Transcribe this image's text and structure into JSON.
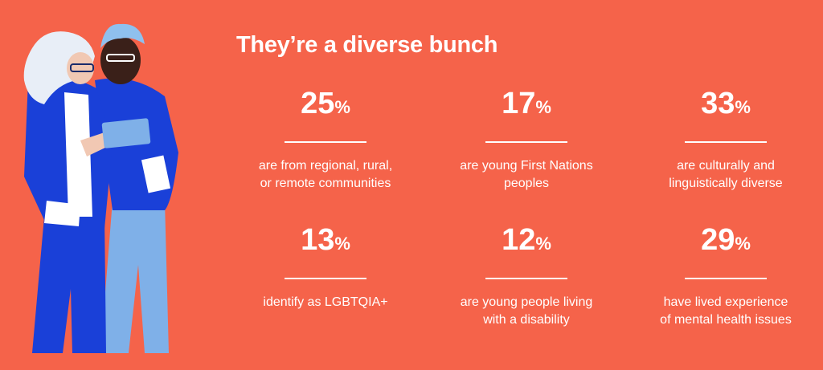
{
  "heading": "They’re a diverse bunch",
  "colors": {
    "background": "#f5634a",
    "text": "#ffffff",
    "illustration_blue": "#1a40d8",
    "illustration_light_blue": "#7fb0e8"
  },
  "stats": [
    {
      "value": "25",
      "unit": "%",
      "line1": "are from regional, rural,",
      "line2": "or remote communities"
    },
    {
      "value": "17",
      "unit": "%",
      "line1": "are young First Nations",
      "line2": "peoples"
    },
    {
      "value": "33",
      "unit": "%",
      "line1": "are culturally and",
      "line2": "linguistically diverse"
    },
    {
      "value": "13",
      "unit": "%",
      "line1": "identify as LGBTQIA+",
      "line2": ""
    },
    {
      "value": "12",
      "unit": "%",
      "line1": "are young people living",
      "line2": "with a disability"
    },
    {
      "value": "29",
      "unit": "%",
      "line1": "have lived experience",
      "line2": "of mental health issues"
    }
  ]
}
